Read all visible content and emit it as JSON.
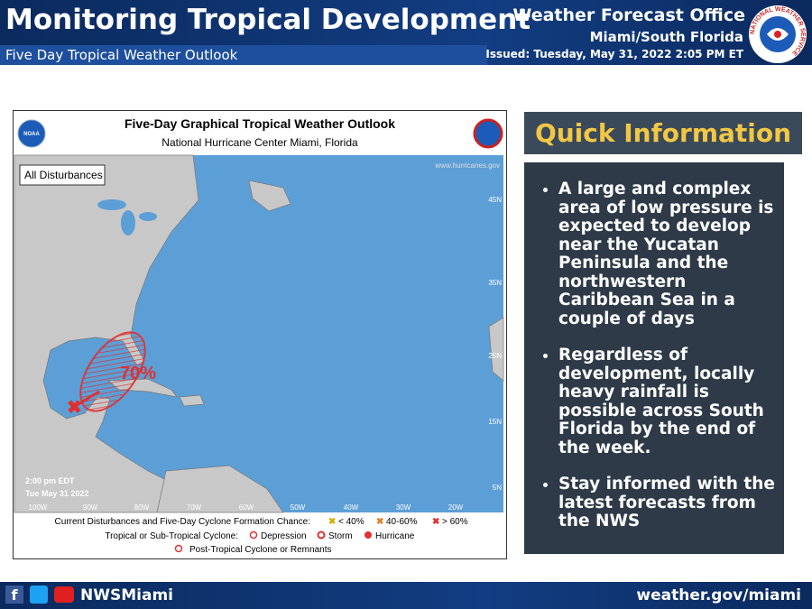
{
  "header": {
    "title": "Monitoring Tropical Development",
    "subtitle": "Five Day Tropical Weather Outlook",
    "office": "Weather Forecast Office",
    "location": "Miami/South Florida",
    "issued": "Issued:  Tuesday, May 31, 2022  2:05 PM ET",
    "logo_text": "NATIONAL WEATHER SERVICE"
  },
  "map": {
    "title": "Five-Day Graphical Tropical Weather Outlook",
    "subtitle": "National Hurricane Center  Miami, Florida",
    "noaa": "NOAA",
    "filter": "All Disturbances",
    "url": "www.hurricanes.gov",
    "time": "2:00 pm EDT",
    "date": "Tue May 31 2022",
    "chance": "70%",
    "lat_labels": [
      "45N",
      "35N",
      "25N",
      "15N",
      "5N"
    ],
    "lon_labels": [
      "100W",
      "90W",
      "80W",
      "70W",
      "60W",
      "50W",
      "40W",
      "30W",
      "20W"
    ],
    "legend": {
      "disturbances": "Current Disturbances and Five-Day Cyclone Formation Chance:",
      "low": "< 40%",
      "medium": "40-60%",
      "high": "> 60%",
      "cyclone": "Tropical or Sub-Tropical Cyclone:",
      "depression": "Depression",
      "storm": "Storm",
      "hurricane": "Hurricane",
      "post": "Post-Tropical Cyclone or Remnants"
    }
  },
  "quick_info": {
    "title": "Quick Information",
    "bullets": [
      "A large and complex area of low pressure is expected to develop near the Yucatan Peninsula and the northwestern Caribbean Sea in a couple of days",
      "Regardless of development, locally heavy rainfall is possible across South Florida by the end of the week.",
      "Stay informed with the latest forecasts from the NWS"
    ]
  },
  "footer": {
    "handle": "NWSMiami",
    "url": "weather.gov/miami"
  }
}
